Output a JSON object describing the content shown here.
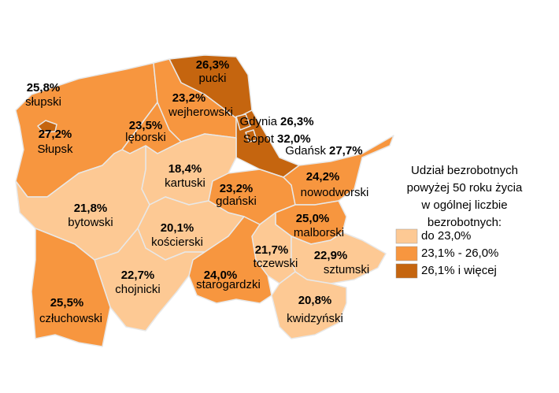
{
  "regions": [
    {
      "name": "pucki",
      "value": 26.3,
      "value_label": "26,3%"
    },
    {
      "name": "słupski",
      "value": 25.8,
      "value_label": "25,8%"
    },
    {
      "name": "Słupsk",
      "value": 27.2,
      "value_label": "27,2%"
    },
    {
      "name": "wejherowski",
      "value": 23.2,
      "value_label": "23,2%"
    },
    {
      "name": "lęborski",
      "value": 23.5,
      "value_label": "23,5%"
    },
    {
      "name": "Gdańsk",
      "value": 27.7,
      "value_label": "27,7%"
    },
    {
      "name": "Gdynia",
      "value": 26.3,
      "value_label": "26,3%"
    },
    {
      "name": "Sopot",
      "value": 32.0,
      "value_label": "32,0%"
    },
    {
      "name": "kartuski",
      "value": 18.4,
      "value_label": "18,4%"
    },
    {
      "name": "bytowski",
      "value": 21.8,
      "value_label": "21,8%"
    },
    {
      "name": "gdański",
      "value": 23.2,
      "value_label": "23,2%"
    },
    {
      "name": "nowodworski",
      "value": 24.2,
      "value_label": "24,2%"
    },
    {
      "name": "kościerski",
      "value": 20.1,
      "value_label": "20,1%"
    },
    {
      "name": "malborski",
      "value": 25.0,
      "value_label": "25,0%"
    },
    {
      "name": "tczewski",
      "value": 21.7,
      "value_label": "21,7%"
    },
    {
      "name": "sztumski",
      "value": 22.9,
      "value_label": "22,9%"
    },
    {
      "name": "starogardzki",
      "value": 24.0,
      "value_label": "24,0%"
    },
    {
      "name": "chojnicki",
      "value": 22.7,
      "value_label": "22,7%"
    },
    {
      "name": "człuchowski",
      "value": 25.5,
      "value_label": "25,5%"
    },
    {
      "name": "kwidzyński",
      "value": 20.8,
      "value_label": "20,8%"
    }
  ],
  "legend": {
    "title_lines": [
      "Udział bezrobotnych",
      "powyżej 50 roku życia",
      "w ogólnej liczbie",
      "bezrobotnych:"
    ],
    "items": [
      {
        "label": "do 23,0%",
        "color": "#fdc994",
        "max": 23.0
      },
      {
        "label": "23,1% - 26,0%",
        "color": "#f7963f",
        "min": 23.1,
        "max": 26.0
      },
      {
        "label": "26,1% i więcej",
        "color": "#c5650f",
        "min": 26.1
      }
    ]
  }
}
